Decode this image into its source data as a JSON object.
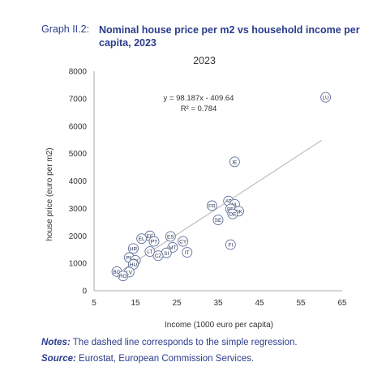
{
  "header": {
    "label": "Graph II.2:",
    "title": "Nominal house price per m2 vs household income per capita, 2023"
  },
  "notes": {
    "prefix": "Notes:",
    "text": "The dashed line corresponds to the simple regression."
  },
  "source": {
    "prefix": "Source:",
    "text": "Eurostat, European Commission Services."
  },
  "colors": {
    "accent": "#2b3c8c",
    "marker": "#5b6d9e",
    "trend": "#b5b5b5"
  },
  "chart_data": {
    "type": "scatter",
    "title": "2023",
    "xlabel": "Income (1000 euro per capita)",
    "ylabel": "house price (euro per m2)",
    "xlim": [
      5,
      65
    ],
    "ylim": [
      0,
      8000
    ],
    "x_ticks": [
      5,
      15,
      25,
      35,
      45,
      55,
      65
    ],
    "y_ticks": [
      0,
      1000,
      2000,
      3000,
      4000,
      5000,
      6000,
      7000,
      8000
    ],
    "grid": false,
    "equation": "y = 98.187x - 409.64",
    "r_squared": "R² = 0.784",
    "trendline": {
      "slope": 98.187,
      "intercept": -409.64,
      "x_range": [
        12,
        60
      ]
    },
    "points": [
      {
        "label": "LU",
        "x": 61.0,
        "y": 7050
      },
      {
        "label": "IE",
        "x": 39.0,
        "y": 4700
      },
      {
        "label": "AT",
        "x": 37.5,
        "y": 3270
      },
      {
        "label": "NL",
        "x": 39.0,
        "y": 3150
      },
      {
        "label": "FR",
        "x": 33.5,
        "y": 3100
      },
      {
        "label": "BE",
        "x": 38.0,
        "y": 2980
      },
      {
        "label": "DK",
        "x": 40.0,
        "y": 2900
      },
      {
        "label": "DE",
        "x": 38.5,
        "y": 2800
      },
      {
        "label": "SE",
        "x": 35.0,
        "y": 2580
      },
      {
        "label": "FI",
        "x": 38.0,
        "y": 1680
      },
      {
        "label": "EE",
        "x": 18.5,
        "y": 2000
      },
      {
        "label": "ES",
        "x": 23.5,
        "y": 1980
      },
      {
        "label": "EL",
        "x": 16.5,
        "y": 1900
      },
      {
        "label": "PT",
        "x": 19.5,
        "y": 1800
      },
      {
        "label": "CY",
        "x": 26.5,
        "y": 1800
      },
      {
        "label": "HR",
        "x": 14.5,
        "y": 1540
      },
      {
        "label": "MT",
        "x": 24.0,
        "y": 1580
      },
      {
        "label": "LT",
        "x": 18.5,
        "y": 1430
      },
      {
        "label": "SI",
        "x": 22.5,
        "y": 1380
      },
      {
        "label": "IT",
        "x": 27.5,
        "y": 1400
      },
      {
        "label": "CZ",
        "x": 20.5,
        "y": 1280
      },
      {
        "label": "PL",
        "x": 13.5,
        "y": 1210
      },
      {
        "label": "SK",
        "x": 15.0,
        "y": 1110
      },
      {
        "label": "HU",
        "x": 14.5,
        "y": 960
      },
      {
        "label": "BG",
        "x": 10.5,
        "y": 700
      },
      {
        "label": "LV",
        "x": 13.5,
        "y": 680
      },
      {
        "label": "RO",
        "x": 12.0,
        "y": 540
      }
    ]
  }
}
